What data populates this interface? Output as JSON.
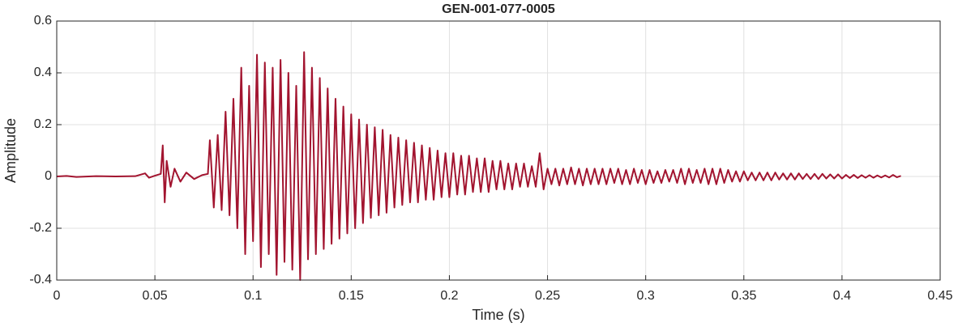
{
  "chart_data": {
    "type": "line",
    "title": "GEN-001-077-0005",
    "x_label": "Time (s)",
    "y_label": "Amplitude",
    "color": "#a2142f",
    "grid": true,
    "xlim": [
      0,
      0.45
    ],
    "ylim": [
      -0.4,
      0.6
    ],
    "xticks": [
      0,
      0.05,
      0.1,
      0.15,
      0.2,
      0.25,
      0.3,
      0.35,
      0.4,
      0.45
    ],
    "yticks": [
      -0.4,
      -0.2,
      0,
      0.2,
      0.4,
      0.6
    ],
    "x": [
      0,
      0.005,
      0.01,
      0.02,
      0.03,
      0.04,
      0.045,
      0.047,
      0.05,
      0.053,
      0.054,
      0.055,
      0.056,
      0.058,
      0.06,
      0.063,
      0.066,
      0.07,
      0.074,
      0.077,
      0.078,
      0.08,
      0.082,
      0.084,
      0.086,
      0.088,
      0.09,
      0.092,
      0.094,
      0.096,
      0.098,
      0.1,
      0.102,
      0.104,
      0.106,
      0.108,
      0.11,
      0.112,
      0.114,
      0.116,
      0.118,
      0.12,
      0.122,
      0.124,
      0.126,
      0.128,
      0.13,
      0.132,
      0.134,
      0.136,
      0.138,
      0.14,
      0.142,
      0.144,
      0.146,
      0.148,
      0.15,
      0.152,
      0.154,
      0.156,
      0.158,
      0.16,
      0.162,
      0.164,
      0.166,
      0.168,
      0.17,
      0.172,
      0.174,
      0.176,
      0.178,
      0.18,
      0.182,
      0.184,
      0.186,
      0.188,
      0.19,
      0.192,
      0.194,
      0.196,
      0.198,
      0.2,
      0.202,
      0.204,
      0.206,
      0.208,
      0.21,
      0.212,
      0.214,
      0.216,
      0.218,
      0.22,
      0.222,
      0.224,
      0.226,
      0.228,
      0.23,
      0.232,
      0.234,
      0.236,
      0.238,
      0.24,
      0.242,
      0.244,
      0.246,
      0.248,
      0.25,
      0.252,
      0.254,
      0.256,
      0.258,
      0.26,
      0.262,
      0.264,
      0.266,
      0.268,
      0.27,
      0.272,
      0.274,
      0.276,
      0.278,
      0.28,
      0.282,
      0.284,
      0.286,
      0.288,
      0.29,
      0.292,
      0.294,
      0.296,
      0.298,
      0.3,
      0.302,
      0.304,
      0.306,
      0.308,
      0.31,
      0.312,
      0.314,
      0.316,
      0.318,
      0.32,
      0.322,
      0.324,
      0.326,
      0.328,
      0.33,
      0.332,
      0.334,
      0.336,
      0.338,
      0.34,
      0.342,
      0.344,
      0.346,
      0.348,
      0.35,
      0.352,
      0.354,
      0.356,
      0.358,
      0.36,
      0.362,
      0.364,
      0.366,
      0.368,
      0.37,
      0.372,
      0.374,
      0.376,
      0.378,
      0.38,
      0.382,
      0.384,
      0.386,
      0.388,
      0.39,
      0.392,
      0.394,
      0.396,
      0.398,
      0.4,
      0.402,
      0.404,
      0.406,
      0.408,
      0.41,
      0.412,
      0.414,
      0.416,
      0.418,
      0.42,
      0.422,
      0.424,
      0.426,
      0.428,
      0.43
    ],
    "values": [
      0,
      0.002,
      -0.002,
      0.001,
      0,
      0.001,
      0.012,
      -0.005,
      0.003,
      0.01,
      0.12,
      -0.1,
      0.06,
      -0.04,
      0.03,
      -0.02,
      0.015,
      -0.01,
      0.005,
      0.01,
      0.14,
      -0.12,
      0.16,
      -0.13,
      0.25,
      -0.15,
      0.3,
      -0.2,
      0.42,
      -0.3,
      0.35,
      -0.25,
      0.47,
      -0.35,
      0.44,
      -0.3,
      0.42,
      -0.38,
      0.45,
      -0.33,
      0.4,
      -0.36,
      0.35,
      -0.4,
      0.48,
      -0.32,
      0.42,
      -0.3,
      0.38,
      -0.28,
      0.34,
      -0.26,
      0.3,
      -0.24,
      0.27,
      -0.22,
      0.24,
      -0.2,
      0.22,
      -0.18,
      0.2,
      -0.16,
      0.19,
      -0.15,
      0.18,
      -0.14,
      0.16,
      -0.12,
      0.15,
      -0.11,
      0.14,
      -0.1,
      0.13,
      -0.1,
      0.12,
      -0.09,
      0.11,
      -0.09,
      0.1,
      -0.08,
      0.09,
      -0.08,
      0.09,
      -0.07,
      0.08,
      -0.07,
      0.08,
      -0.06,
      0.07,
      -0.06,
      0.07,
      -0.06,
      0.06,
      -0.05,
      0.06,
      -0.05,
      0.05,
      -0.05,
      0.05,
      -0.04,
      0.05,
      -0.04,
      0.04,
      -0.04,
      0.09,
      -0.05,
      0.03,
      -0.03,
      0.03,
      -0.035,
      0.03,
      -0.03,
      0.035,
      -0.03,
      0.03,
      -0.035,
      0.03,
      -0.03,
      0.03,
      -0.03,
      0.03,
      -0.03,
      0.03,
      -0.025,
      0.03,
      -0.03,
      0.025,
      -0.03,
      0.03,
      -0.025,
      0.025,
      -0.03,
      0.025,
      -0.025,
      0.02,
      -0.025,
      0.025,
      -0.02,
      0.025,
      -0.025,
      0.03,
      -0.03,
      0.03,
      -0.025,
      0.025,
      -0.025,
      0.03,
      -0.03,
      0.03,
      -0.03,
      0.03,
      -0.025,
      0.025,
      -0.02,
      0.02,
      -0.02,
      0.02,
      -0.015,
      0.015,
      -0.015,
      0.015,
      -0.015,
      0.015,
      -0.015,
      0.015,
      -0.012,
      0.012,
      -0.012,
      0.012,
      -0.012,
      0.012,
      -0.01,
      0.01,
      -0.01,
      0.01,
      -0.01,
      0.01,
      -0.008,
      0.008,
      -0.008,
      0.008,
      -0.008,
      0.006,
      -0.006,
      0.006,
      -0.006,
      0.005,
      -0.005,
      0.005,
      -0.005,
      0.004,
      -0.004,
      0.004,
      -0.004,
      0.006,
      -0.003,
      0.002
    ]
  }
}
